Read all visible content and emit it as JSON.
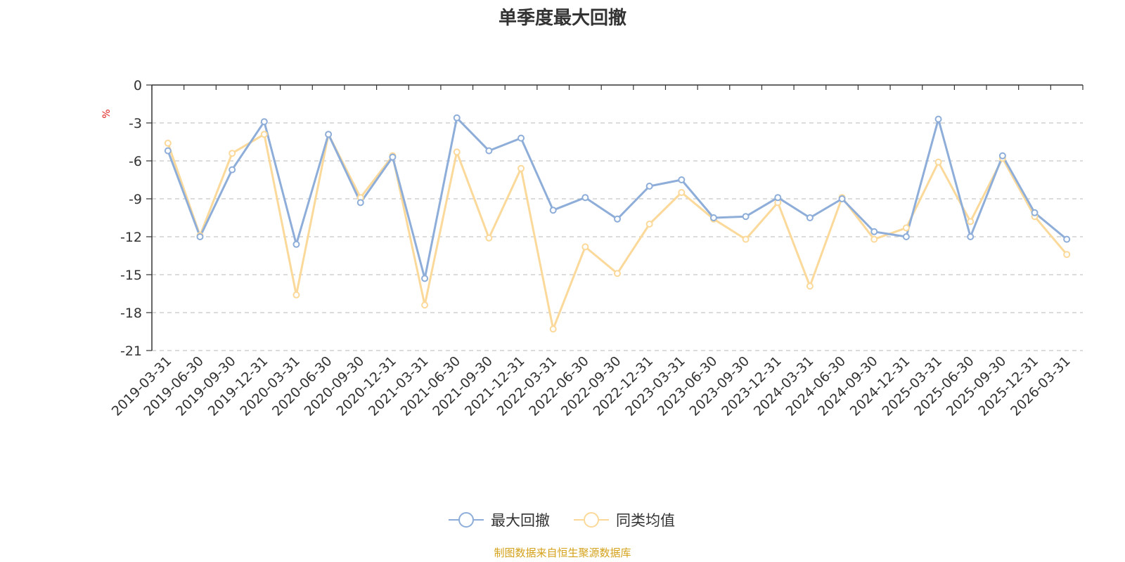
{
  "chart_data": {
    "type": "line",
    "title": "单季度最大回撤",
    "ylabel": "%",
    "xlabel": "",
    "ylim": [
      -21,
      0
    ],
    "yticks": [
      0,
      -3,
      -6,
      -9,
      -12,
      -15,
      -18,
      -21
    ],
    "grid": true,
    "legend_position": "bottom-center",
    "categories": [
      "2019-03-31",
      "2019-06-30",
      "2019-09-30",
      "2019-12-31",
      "2020-03-31",
      "2020-06-30",
      "2020-09-30",
      "2020-12-31",
      "2021-03-31",
      "2021-06-30",
      "2021-09-30",
      "2021-12-31",
      "2022-03-31",
      "2022-06-30",
      "2022-09-30",
      "2022-12-31",
      "2023-03-31",
      "2023-06-30",
      "2023-09-30",
      "2023-12-31",
      "2024-03-31",
      "2024-06-30",
      "2024-09-30",
      "2024-12-31",
      "2025-03-31",
      "2025-06-30",
      "2025-09-30",
      "2025-12-31",
      "2026-03-31"
    ],
    "series": [
      {
        "name": "最大回撤",
        "color": "#8eaed9",
        "values": [
          -5.2,
          -12.0,
          -6.7,
          -2.9,
          -12.6,
          -3.9,
          -9.3,
          -5.7,
          -15.3,
          -2.6,
          -5.2,
          -4.2,
          -9.9,
          -8.9,
          -10.6,
          -8.0,
          -7.5,
          -10.5,
          -10.4,
          -8.9,
          -10.5,
          -9.0,
          -11.6,
          -12.0,
          -2.7,
          -12.0,
          -5.6,
          -10.1,
          -12.2
        ]
      },
      {
        "name": "同类均值",
        "color": "#fbd99a",
        "values": [
          -4.6,
          -11.9,
          -5.4,
          -3.9,
          -16.6,
          -3.9,
          -8.9,
          -5.6,
          -17.4,
          -5.3,
          -12.1,
          -6.6,
          -19.3,
          -12.8,
          -14.9,
          -11.0,
          -8.5,
          -10.6,
          -12.2,
          -9.3,
          -15.9,
          -8.9,
          -12.2,
          -11.3,
          -6.1,
          -10.8,
          -5.8,
          -10.4,
          -13.4
        ]
      }
    ],
    "source_note": "制图数据来自恒生聚源数据库"
  }
}
